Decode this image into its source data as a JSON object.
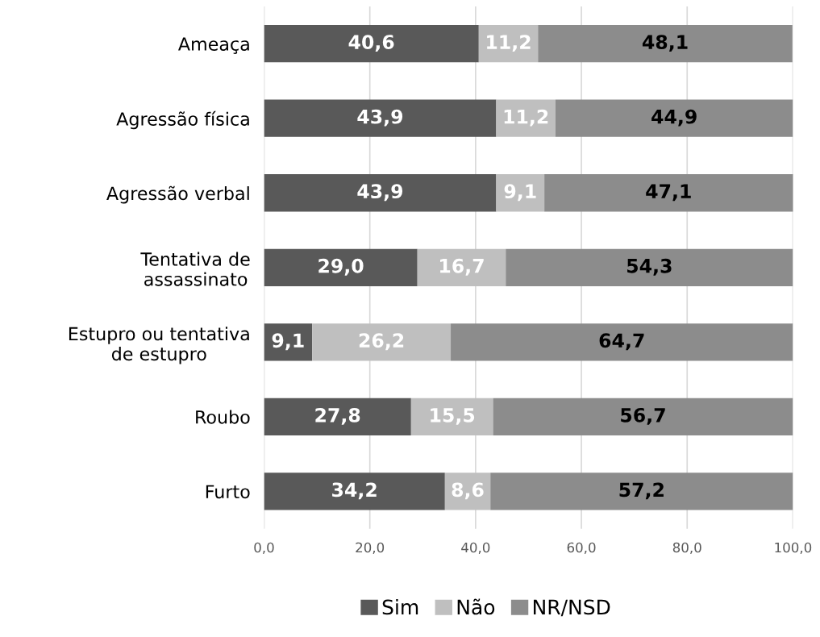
{
  "chart_data": {
    "type": "bar",
    "orientation": "horizontal",
    "stacked": true,
    "categories": [
      "Ameaça",
      "Agressão física",
      "Agressão verbal",
      "Tentativa de\nassassinato",
      "Estupro ou tentativa\nde estupro",
      "Roubo",
      "Furto"
    ],
    "series": [
      {
        "name": "Sim",
        "color": "#595959",
        "values": [
          40.6,
          43.9,
          43.9,
          29.0,
          9.1,
          27.8,
          34.2
        ],
        "value_labels": [
          "40,6",
          "43,9",
          "43,9",
          "29,0",
          "9,1",
          "27,8",
          "34,2"
        ]
      },
      {
        "name": "Não",
        "color": "#bfbfbf",
        "values": [
          11.2,
          11.2,
          9.1,
          16.7,
          26.2,
          15.5,
          8.6
        ],
        "value_labels": [
          "11,2",
          "11,2",
          "9,1",
          "16,7",
          "26,2",
          "15,5",
          "8,6"
        ]
      },
      {
        "name": "NR/NSD",
        "color": "#8c8c8c",
        "values": [
          48.1,
          44.9,
          47.1,
          54.3,
          64.7,
          56.7,
          57.2
        ],
        "value_labels": [
          "48,1",
          "44,9",
          "47,1",
          "54,3",
          "64,7",
          "56,7",
          "57,2"
        ]
      }
    ],
    "xlim": [
      0,
      100
    ],
    "xticks": [
      {
        "value": 0,
        "label": "0,0"
      },
      {
        "value": 20,
        "label": "20,0"
      },
      {
        "value": 40,
        "label": "40,0"
      },
      {
        "value": 60,
        "label": "60,0"
      },
      {
        "value": 80,
        "label": "80,0"
      },
      {
        "value": 100,
        "label": "100,0"
      }
    ],
    "grid": "x",
    "legend": "bottom"
  }
}
